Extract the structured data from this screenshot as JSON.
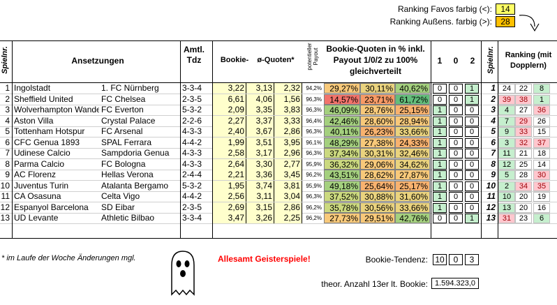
{
  "legend": {
    "favos_label": "Ranking Favos farbig (<):",
    "favos_value": "14",
    "aussen_label": "Ranking Außens. farbig (>):",
    "aussen_value": "28"
  },
  "headers": {
    "spielnr": "Spielnr.",
    "ansetzungen": "Ansetzungen",
    "amtl_tdz": "Amtl. Tdz",
    "bookie": "Bookie-",
    "quoten": "ø-Quoten*",
    "payout": "potentieller Payout",
    "bookie_pct": "Bookie-Quoten in % inkl. Payout 1/0/2 zu 100% gleichverteilt",
    "col1": "1",
    "col0": "0",
    "col2": "2",
    "spielnr2": "Spielnr.",
    "ranking": "Ranking (mit Dopplern)"
  },
  "rows": [
    {
      "nr": "1",
      "home": "Ingolstadt",
      "away": "1. FC Nürnberg",
      "tdz": "3-3-4",
      "q1": "3,22",
      "q0": "3,13",
      "q2": "2,32",
      "payout": "94,2%",
      "p1": "29,27%",
      "p0": "30,11%",
      "p2": "40,62%",
      "t1": "0",
      "t0": "0",
      "t2": "1",
      "nr2": "1",
      "r1": "24",
      "r0": "22",
      "r2": "8"
    },
    {
      "nr": "2",
      "home": "Sheffield United",
      "away": "FC Chelsea",
      "tdz": "2-3-5",
      "q1": "6,61",
      "q0": "4,06",
      "q2": "1,56",
      "payout": "96,3%",
      "p1": "14,57%",
      "p0": "23,71%",
      "p2": "61,72%",
      "t1": "0",
      "t0": "0",
      "t2": "1",
      "nr2": "2",
      "r1": "39",
      "r0": "38",
      "r2": "1"
    },
    {
      "nr": "3",
      "home": "Wolverhampton Wanderers",
      "away": "FC Everton",
      "tdz": "5-3-2",
      "q1": "2,09",
      "q0": "3,35",
      "q2": "3,83",
      "payout": "96,3%",
      "p1": "46,09%",
      "p0": "28,76%",
      "p2": "25,15%",
      "t1": "1",
      "t0": "0",
      "t2": "0",
      "nr2": "3",
      "r1": "4",
      "r0": "27",
      "r2": "36"
    },
    {
      "nr": "4",
      "home": "Aston Villa",
      "away": "Crystal Palace",
      "tdz": "2-2-6",
      "q1": "2,27",
      "q0": "3,37",
      "q2": "3,33",
      "payout": "96,4%",
      "p1": "42,46%",
      "p0": "28,60%",
      "p2": "28,94%",
      "t1": "1",
      "t0": "0",
      "t2": "0",
      "nr2": "4",
      "r1": "7",
      "r0": "29",
      "r2": "26"
    },
    {
      "nr": "5",
      "home": "Tottenham Hotspur",
      "away": "FC Arsenal",
      "tdz": "4-3-3",
      "q1": "2,40",
      "q0": "3,67",
      "q2": "2,86",
      "payout": "96,3%",
      "p1": "40,11%",
      "p0": "26,23%",
      "p2": "33,66%",
      "t1": "1",
      "t0": "0",
      "t2": "0",
      "nr2": "5",
      "r1": "9",
      "r0": "33",
      "r2": "15"
    },
    {
      "nr": "6",
      "home": "CFC Genua 1893",
      "away": "SPAL Ferrara",
      "tdz": "4-4-2",
      "q1": "1,99",
      "q0": "3,51",
      "q2": "3,95",
      "payout": "96,1%",
      "p1": "48,29%",
      "p0": "27,38%",
      "p2": "24,33%",
      "t1": "1",
      "t0": "0",
      "t2": "0",
      "nr2": "6",
      "r1": "3",
      "r0": "32",
      "r2": "37"
    },
    {
      "nr": "7",
      "home": "Udinese Calcio",
      "away": "Sampdoria Genua",
      "tdz": "4-3-3",
      "q1": "2,58",
      "q0": "3,17",
      "q2": "2,96",
      "payout": "96,3%",
      "p1": "37,34%",
      "p0": "30,31%",
      "p2": "32,46%",
      "t1": "1",
      "t0": "0",
      "t2": "0",
      "nr2": "7",
      "r1": "11",
      "r0": "21",
      "r2": "18"
    },
    {
      "nr": "8",
      "home": "Parma Calcio",
      "away": "FC Bologna",
      "tdz": "4-3-3",
      "q1": "2,64",
      "q0": "3,30",
      "q2": "2,77",
      "payout": "95,9%",
      "p1": "36,32%",
      "p0": "29,06%",
      "p2": "34,62%",
      "t1": "1",
      "t0": "0",
      "t2": "0",
      "nr2": "8",
      "r1": "12",
      "r0": "25",
      "r2": "14"
    },
    {
      "nr": "9",
      "home": "AC Florenz",
      "away": "Hellas Verona",
      "tdz": "2-4-4",
      "q1": "2,21",
      "q0": "3,36",
      "q2": "3,45",
      "payout": "96,2%",
      "p1": "43,51%",
      "p0": "28,62%",
      "p2": "27,87%",
      "t1": "1",
      "t0": "0",
      "t2": "0",
      "nr2": "9",
      "r1": "5",
      "r0": "28",
      "r2": "30"
    },
    {
      "nr": "10",
      "home": "Juventus Turin",
      "away": "Atalanta Bergamo",
      "tdz": "5-3-2",
      "q1": "1,95",
      "q0": "3,74",
      "q2": "3,81",
      "payout": "95,9%",
      "p1": "49,18%",
      "p0": "25,64%",
      "p2": "25,17%",
      "t1": "1",
      "t0": "0",
      "t2": "0",
      "nr2": "10",
      "r1": "2",
      "r0": "34",
      "r2": "35"
    },
    {
      "nr": "11",
      "home": "CA Osasuna",
      "away": "Celta Vigo",
      "tdz": "4-4-2",
      "q1": "2,56",
      "q0": "3,11",
      "q2": "3,04",
      "payout": "96,3%",
      "p1": "37,52%",
      "p0": "30,88%",
      "p2": "31,60%",
      "t1": "1",
      "t0": "0",
      "t2": "0",
      "nr2": "11",
      "r1": "10",
      "r0": "20",
      "r2": "19"
    },
    {
      "nr": "12",
      "home": "Espanyol Barcelona",
      "away": "SD Eibar",
      "tdz": "2-3-5",
      "q1": "2,69",
      "q0": "3,15",
      "q2": "2,86",
      "payout": "96,2%",
      "p1": "35,78%",
      "p0": "30,56%",
      "p2": "33,66%",
      "t1": "1",
      "t0": "0",
      "t2": "0",
      "nr2": "12",
      "r1": "13",
      "r0": "20",
      "r2": "16"
    },
    {
      "nr": "13",
      "home": "UD Levante",
      "away": "Athletic Bilbao",
      "tdz": "3-3-4",
      "q1": "3,47",
      "q0": "3,26",
      "q2": "2,25",
      "payout": "96,2%",
      "p1": "27,73%",
      "p0": "29,51%",
      "p2": "42,76%",
      "t1": "0",
      "t0": "0",
      "t2": "1",
      "nr2": "13",
      "r1": "31",
      "r0": "23",
      "r2": "6"
    }
  ],
  "footer": {
    "note": "* im Laufe der Woche Änderungen mgl.",
    "geister": "Allesamt Geisterspiele!",
    "tendenz_label": "Bookie-Tendenz:",
    "tendenz1": "10",
    "tendenz0": "0",
    "tendenz2": "3",
    "anzahl_label": "theor. Anzahl 13er lt. Bookie:",
    "anzahl_value": "1.594.323,0"
  },
  "colors": {
    "quote_bg": "#ffffcc",
    "favo_yellow": "#ffff66",
    "aussen_orange": "#ffc000",
    "rank_green": "#c6efce",
    "rank_red": "#ffc7ce",
    "rank_red_text": "#9c0006",
    "geister_red": "#ff0000"
  }
}
